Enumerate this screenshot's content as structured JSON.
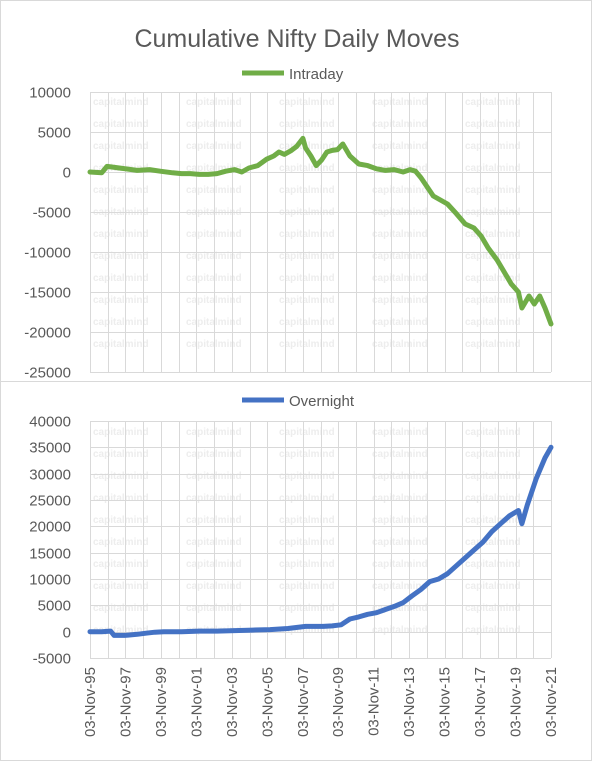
{
  "chart_data": {
    "title": "Cumulative Nifty Daily Moves",
    "watermark": "capitalmind",
    "x_tick_labels": [
      "03-Nov-95",
      "03-Nov-97",
      "03-Nov-99",
      "03-Nov-01",
      "03-Nov-03",
      "03-Nov-05",
      "03-Nov-07",
      "03-Nov-09",
      "03-Nov-11",
      "03-Nov-13",
      "03-Nov-15",
      "03-Nov-17",
      "03-Nov-19",
      "03-Nov-21"
    ],
    "x_range": [
      "1995-11-03",
      "2021-11-03"
    ],
    "panels": [
      {
        "type": "line",
        "series": [
          {
            "name": "Intraday",
            "color": "#70ad47",
            "x": [
              1995.84,
              1996.5,
              1996.8,
              1997.5,
              1998.5,
              1999.2,
              1999.8,
              2000.5,
              2001.0,
              2001.5,
              2002.0,
              2002.5,
              2003.0,
              2003.5,
              2004.0,
              2004.4,
              2004.8,
              2005.3,
              2005.8,
              2006.2,
              2006.5,
              2006.8,
              2007.2,
              2007.5,
              2007.85,
              2008.0,
              2008.3,
              2008.6,
              2008.9,
              2009.2,
              2009.5,
              2009.8,
              2010.1,
              2010.5,
              2011.0,
              2011.5,
              2012.0,
              2012.5,
              2013.0,
              2013.5,
              2013.9,
              2014.2,
              2014.5,
              2014.9,
              2015.2,
              2015.6,
              2016.0,
              2016.5,
              2017.0,
              2017.5,
              2017.9,
              2018.3,
              2018.8,
              2019.2,
              2019.6,
              2020.0,
              2020.2,
              2020.6,
              2020.9,
              2021.2,
              2021.5,
              2021.84
            ],
            "y": [
              0,
              -100,
              700,
              500,
              200,
              300,
              100,
              -100,
              -200,
              -200,
              -300,
              -300,
              -200,
              100,
              300,
              0,
              500,
              800,
              1600,
              2000,
              2500,
              2200,
              2700,
              3200,
              4200,
              3000,
              2000,
              800,
              1500,
              2500,
              2700,
              2800,
              3500,
              2000,
              1000,
              800,
              400,
              200,
              300,
              0,
              300,
              100,
              -700,
              -2000,
              -3000,
              -3500,
              -4000,
              -5200,
              -6500,
              -7000,
              -8000,
              -9500,
              -11000,
              -12500,
              -14000,
              -15000,
              -17000,
              -15500,
              -16500,
              -15500,
              -17000,
              -19000
            ]
          }
        ],
        "ylim": [
          -25000,
          10000
        ],
        "y_ticks": [
          10000,
          5000,
          0,
          -5000,
          -10000,
          -15000,
          -20000,
          -25000
        ],
        "grid": true,
        "legend": "top-center"
      },
      {
        "type": "line",
        "series": [
          {
            "name": "Overnight",
            "color": "#4472c4",
            "x": [
              1995.84,
              1996.5,
              1997.0,
              1997.2,
              1997.8,
              1998.5,
              1999.0,
              1999.5,
              2000.0,
              2001.0,
              2002.0,
              2003.0,
              2004.0,
              2005.0,
              2006.0,
              2007.0,
              2008.0,
              2009.0,
              2009.5,
              2010.0,
              2010.5,
              2011.0,
              2011.5,
              2012.0,
              2012.5,
              2013.0,
              2013.5,
              2014.0,
              2014.5,
              2015.0,
              2015.5,
              2016.0,
              2016.5,
              2017.0,
              2017.5,
              2018.0,
              2018.5,
              2019.0,
              2019.5,
              2020.0,
              2020.2,
              2020.5,
              2021.0,
              2021.5,
              2021.84
            ],
            "y": [
              0,
              0,
              100,
              -700,
              -700,
              -500,
              -300,
              -100,
              0,
              0,
              100,
              100,
              200,
              300,
              400,
              600,
              1000,
              1000,
              1100,
              1300,
              2400,
              2800,
              3300,
              3600,
              4200,
              4800,
              5500,
              6800,
              8000,
              9500,
              10000,
              11000,
              12500,
              14000,
              15500,
              17000,
              19000,
              20500,
              22000,
              23000,
              20500,
              24000,
              29000,
              33000,
              35000
            ]
          }
        ],
        "ylim": [
          -5000,
          40000
        ],
        "y_ticks": [
          40000,
          35000,
          30000,
          25000,
          20000,
          15000,
          10000,
          5000,
          0,
          -5000
        ],
        "grid": true,
        "legend": "top-center"
      }
    ]
  }
}
